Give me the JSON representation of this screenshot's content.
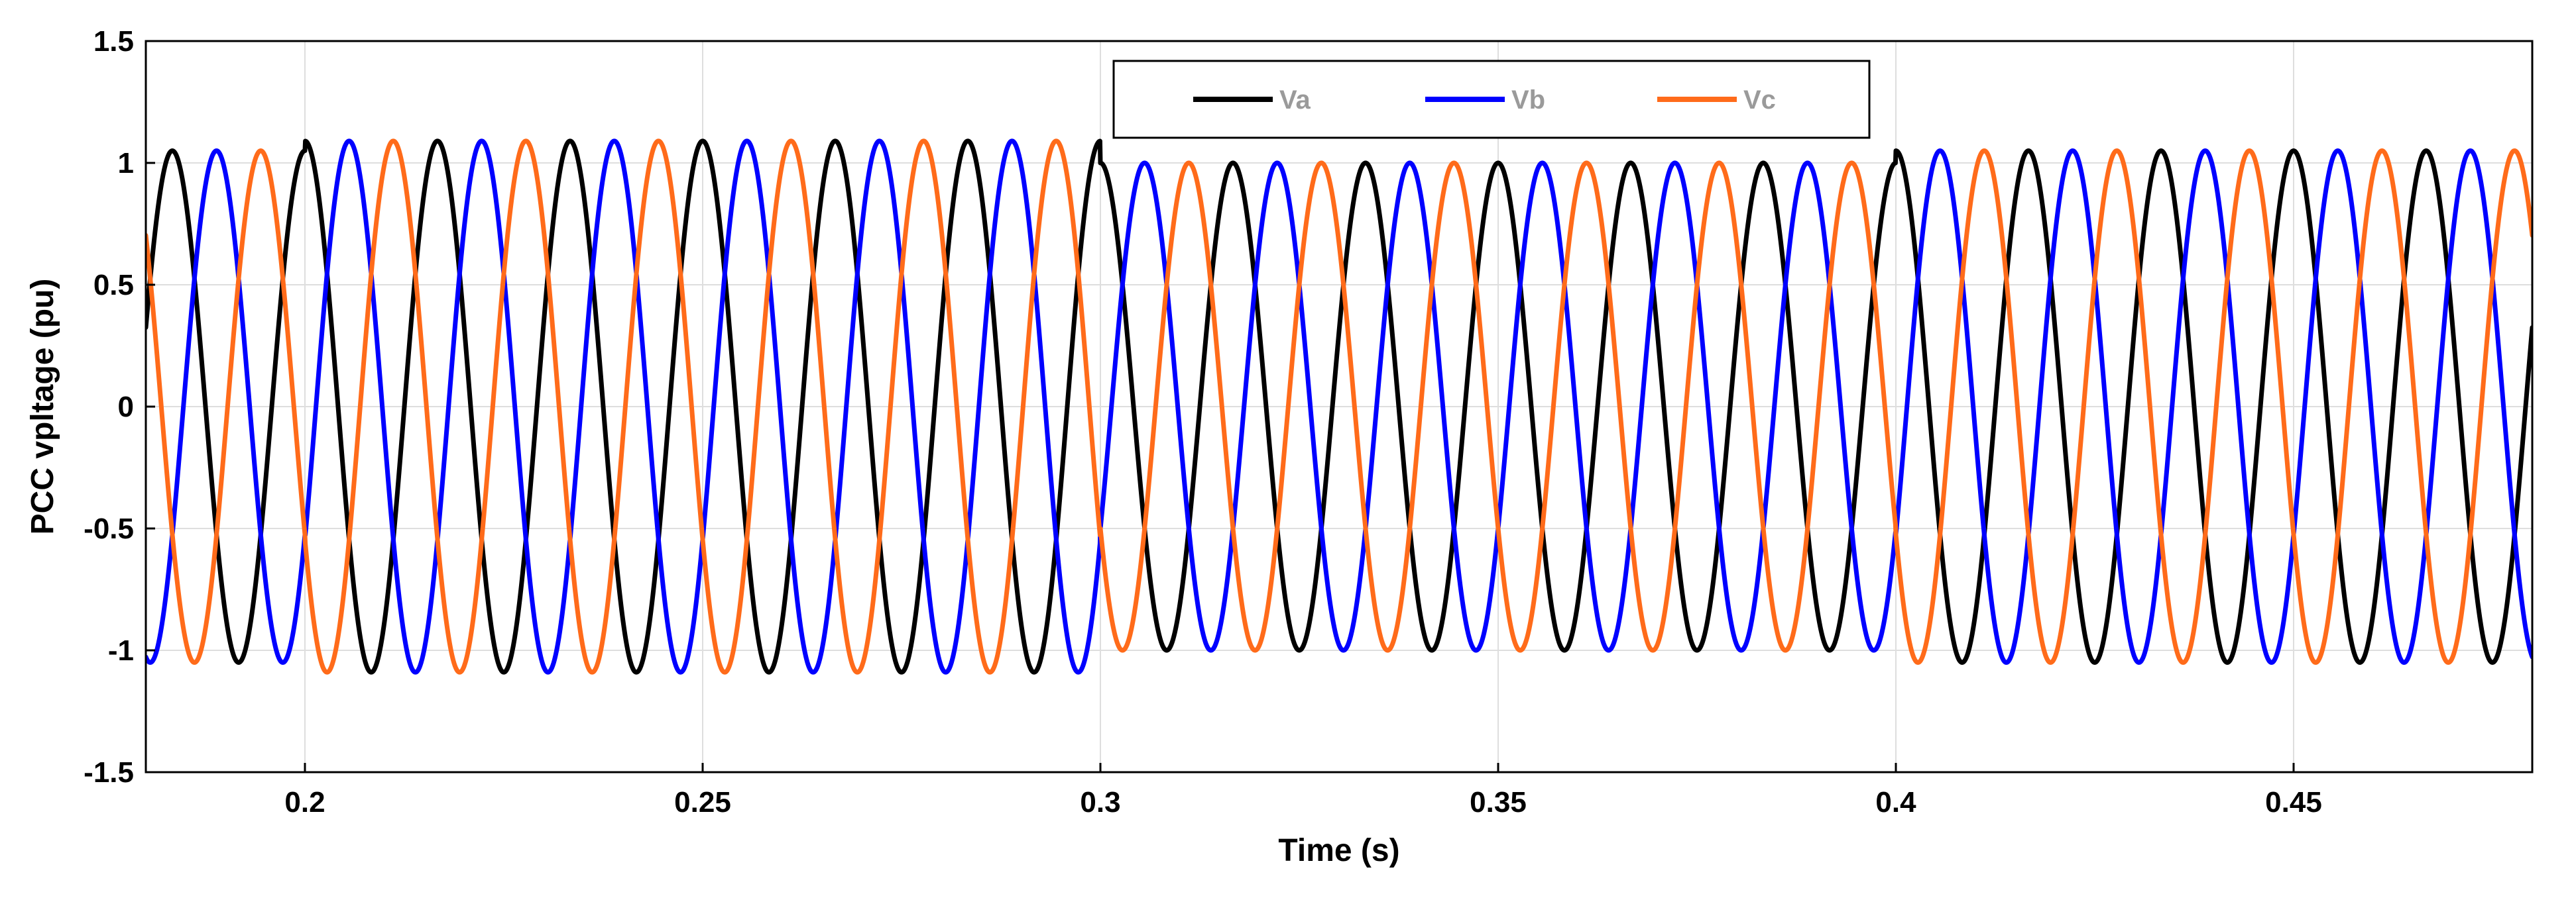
{
  "chart_data": {
    "type": "line",
    "title": "",
    "xlabel": "Time (s)",
    "ylabel": "PCC vpltage (pu)",
    "xlim": [
      0.18,
      0.48
    ],
    "ylim": [
      -1.5,
      1.5
    ],
    "grid": true,
    "legend_position": "top-center",
    "x_ticks": [
      0.2,
      0.25,
      0.3,
      0.35,
      0.4,
      0.45
    ],
    "x_tick_labels": [
      "0.2",
      "0.25",
      "0.3",
      "0.35",
      "0.4",
      "0.45"
    ],
    "y_ticks": [
      1.5,
      1,
      0.5,
      0,
      -0.5,
      -1,
      -1.5
    ],
    "y_tick_labels": [
      "1.5",
      "1",
      "0.5",
      "0",
      "-0.5",
      "-1",
      "-1.5"
    ],
    "frequency_hz": 60,
    "series": [
      {
        "name": "Va",
        "color": "#000000",
        "phase_deg": 0
      },
      {
        "name": "Vb",
        "color": "#0000ff",
        "phase_deg": -120
      },
      {
        "name": "Vc",
        "color": "#ff6b1a",
        "phase_deg": 120
      }
    ],
    "amplitude_segments": [
      {
        "t_start": 0.18,
        "t_end": 0.2,
        "amplitude": 1.05
      },
      {
        "t_start": 0.2,
        "t_end": 0.3,
        "amplitude": 1.09
      },
      {
        "t_start": 0.3,
        "t_end": 0.4,
        "amplitude": 1.0
      },
      {
        "t_start": 0.4,
        "t_end": 0.48,
        "amplitude": 1.05
      }
    ]
  }
}
